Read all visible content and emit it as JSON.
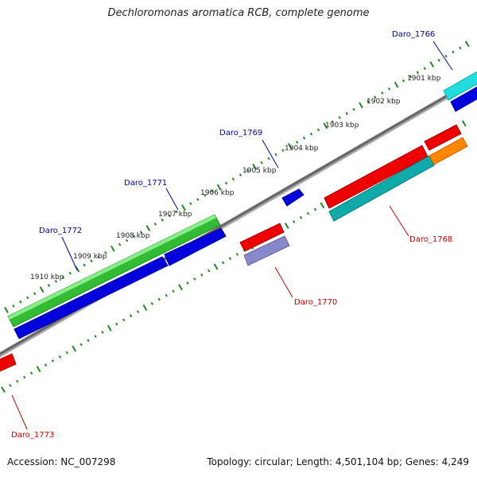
{
  "title": "Dechloromonas aromatica RCB, complete genome",
  "footer": {
    "accession": "Accession: NC_007298",
    "genome_info": "Topology: circular; Length: 4,501,104 bp; Genes: 4,249"
  },
  "scale_labels": [
    "1901 kbp",
    "1902 kbp",
    "1903 kbp",
    "1904 kbp",
    "1905 kbp",
    "1906 kbp",
    "1907 kbp",
    "1908 kbp",
    "1909 kbp",
    "1910 kbp"
  ],
  "gene_labels": {
    "forward": [
      "Daro_1766",
      "Daro_1769",
      "Daro_1771",
      "Daro_1772"
    ],
    "reverse": [
      "Daro_1768",
      "Daro_1770",
      "Daro_1773"
    ]
  },
  "colors": {
    "forward_label": "#0000aa",
    "reverse_label": "#cc0000",
    "backbone": "#777777",
    "tick": "#228822",
    "green": "#33bb33",
    "blue": "#0000dd",
    "cyan": "#22cccc",
    "teal": "#11aaaa",
    "red": "#ee0000",
    "orange": "#ff8800",
    "gray_blue": "#8888cc"
  }
}
